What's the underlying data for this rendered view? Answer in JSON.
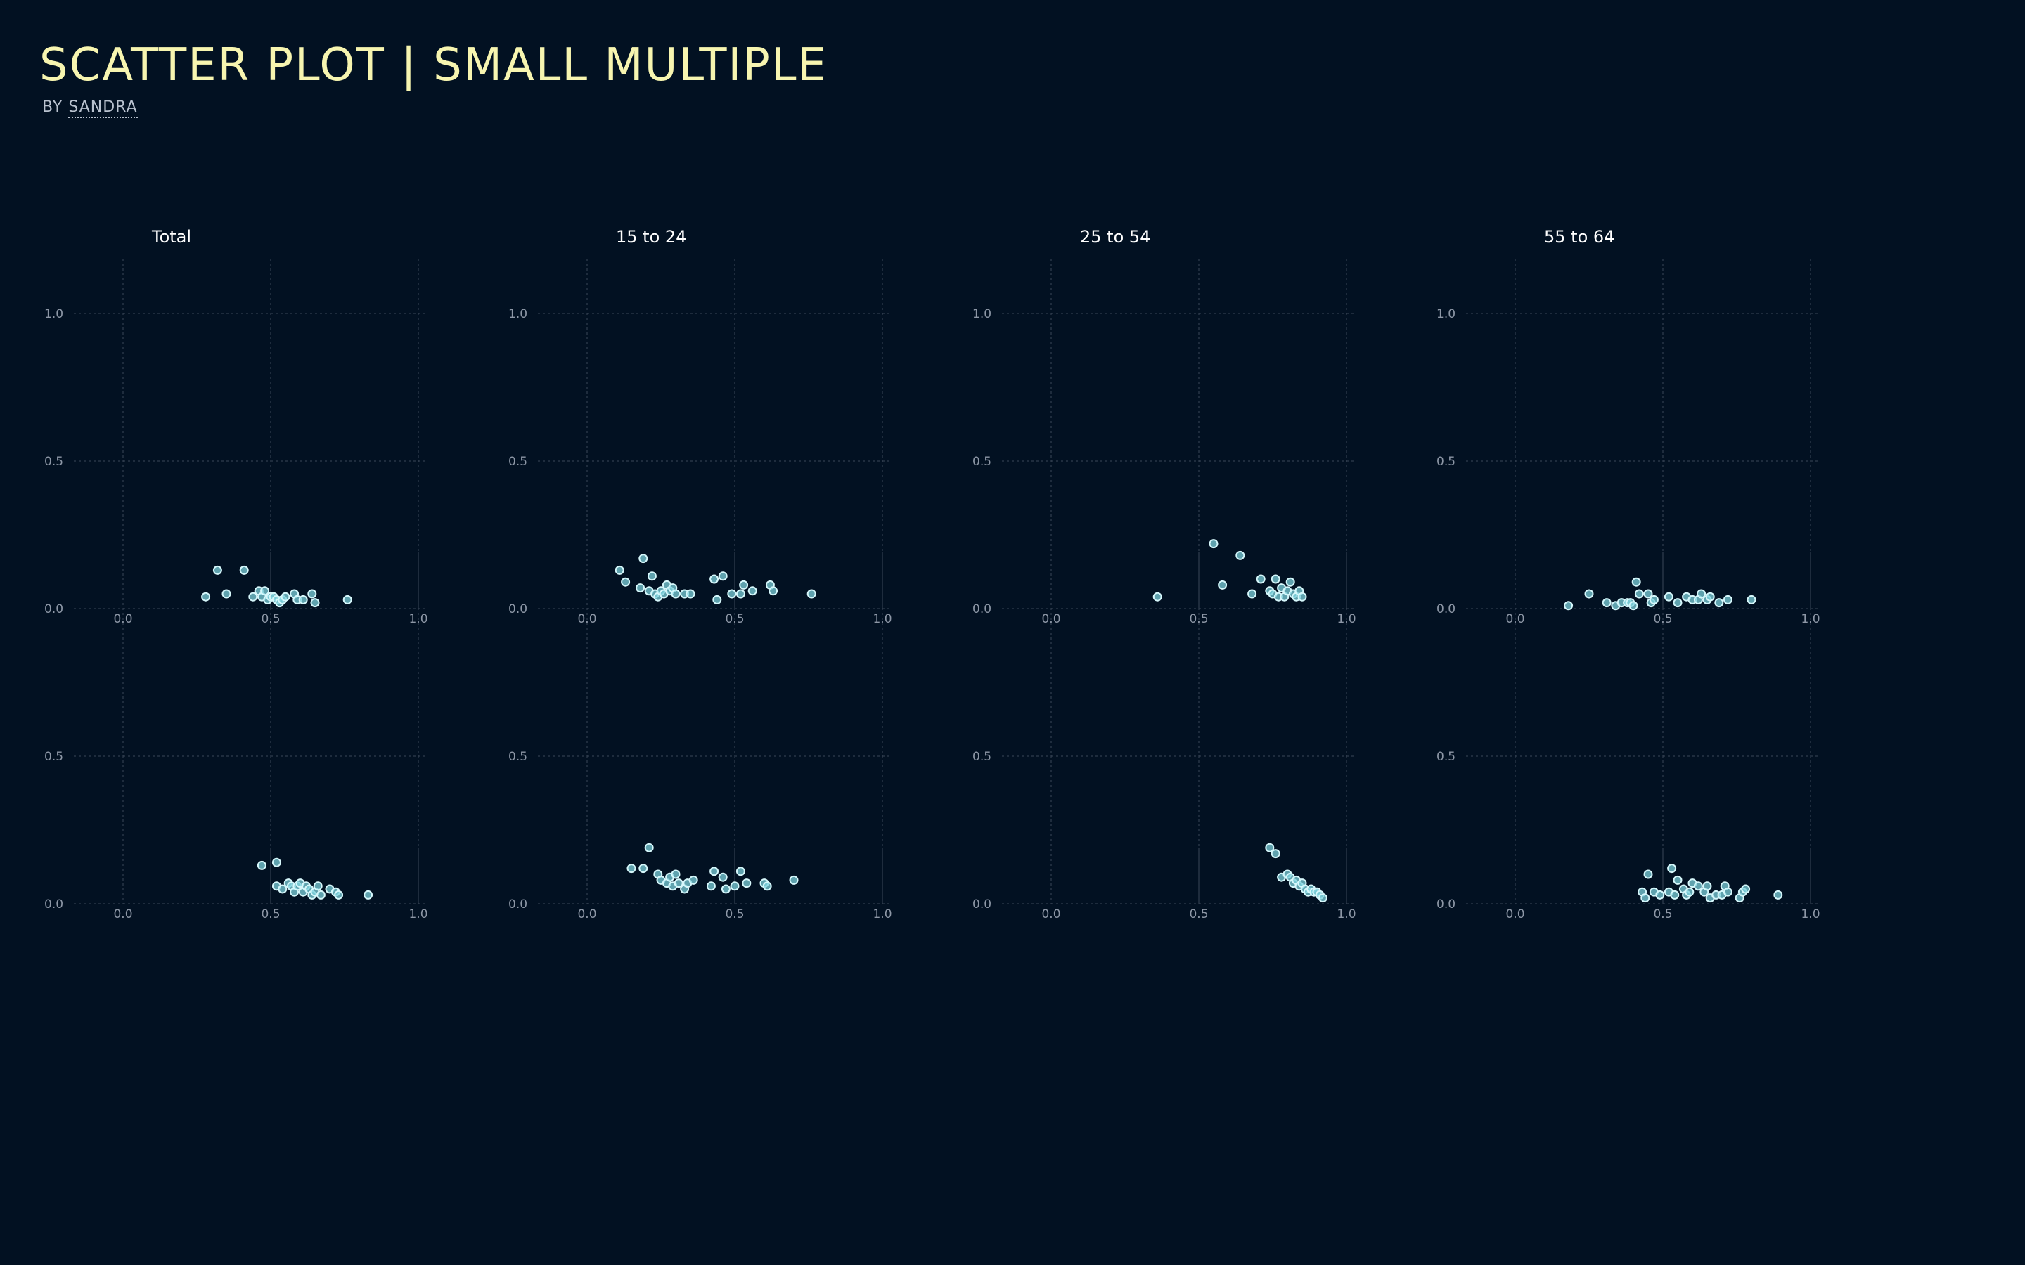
{
  "header": {
    "title": "SCATTER PLOT | SMALL MULTIPLE",
    "byline_prefix": "BY",
    "author": "SANDRA"
  },
  "colors": {
    "background": "#021122",
    "title": "#f7f5b0",
    "point_fill": "#7fd3de",
    "point_stroke": "#d6f7fb",
    "grid": "#3a4658",
    "tick_label": "#8d97a6",
    "panel_title": "#ffffff"
  },
  "chart_data": {
    "type": "scatter",
    "layout": "small-multiples",
    "columns": [
      "Total",
      "15 to 24",
      "25 to 54",
      "55 to 64"
    ],
    "rows": 2,
    "xlim": [
      0,
      1
    ],
    "ylim": [
      0,
      1
    ],
    "xticks": [
      "0.0",
      "0.5",
      "1.0"
    ],
    "yticks_top": [
      "0.0",
      "0.5",
      "1.0"
    ],
    "yticks_bottom": [
      "0.0",
      "0.5"
    ],
    "grid": true,
    "panels": [
      {
        "column": "Total",
        "row": 1,
        "points": [
          [
            0.28,
            0.04
          ],
          [
            0.32,
            0.13
          ],
          [
            0.35,
            0.05
          ],
          [
            0.41,
            0.13
          ],
          [
            0.44,
            0.04
          ],
          [
            0.46,
            0.06
          ],
          [
            0.47,
            0.04
          ],
          [
            0.48,
            0.06
          ],
          [
            0.49,
            0.03
          ],
          [
            0.5,
            0.04
          ],
          [
            0.51,
            0.04
          ],
          [
            0.52,
            0.03
          ],
          [
            0.53,
            0.02
          ],
          [
            0.54,
            0.03
          ],
          [
            0.55,
            0.04
          ],
          [
            0.58,
            0.05
          ],
          [
            0.59,
            0.03
          ],
          [
            0.61,
            0.03
          ],
          [
            0.64,
            0.05
          ],
          [
            0.65,
            0.02
          ],
          [
            0.76,
            0.03
          ]
        ]
      },
      {
        "column": "15 to 24",
        "row": 1,
        "points": [
          [
            0.11,
            0.13
          ],
          [
            0.13,
            0.09
          ],
          [
            0.18,
            0.07
          ],
          [
            0.19,
            0.17
          ],
          [
            0.21,
            0.06
          ],
          [
            0.22,
            0.11
          ],
          [
            0.23,
            0.05
          ],
          [
            0.24,
            0.04
          ],
          [
            0.25,
            0.06
          ],
          [
            0.26,
            0.05
          ],
          [
            0.27,
            0.08
          ],
          [
            0.28,
            0.06
          ],
          [
            0.29,
            0.07
          ],
          [
            0.3,
            0.05
          ],
          [
            0.33,
            0.05
          ],
          [
            0.35,
            0.05
          ],
          [
            0.43,
            0.1
          ],
          [
            0.44,
            0.03
          ],
          [
            0.46,
            0.11
          ],
          [
            0.49,
            0.05
          ],
          [
            0.52,
            0.05
          ],
          [
            0.53,
            0.08
          ],
          [
            0.56,
            0.06
          ],
          [
            0.62,
            0.08
          ],
          [
            0.63,
            0.06
          ],
          [
            0.76,
            0.05
          ]
        ]
      },
      {
        "column": "25 to 54",
        "row": 1,
        "points": [
          [
            0.36,
            0.04
          ],
          [
            0.55,
            0.22
          ],
          [
            0.58,
            0.08
          ],
          [
            0.64,
            0.18
          ],
          [
            0.68,
            0.05
          ],
          [
            0.71,
            0.1
          ],
          [
            0.74,
            0.06
          ],
          [
            0.75,
            0.05
          ],
          [
            0.76,
            0.1
          ],
          [
            0.77,
            0.04
          ],
          [
            0.78,
            0.07
          ],
          [
            0.79,
            0.04
          ],
          [
            0.8,
            0.06
          ],
          [
            0.81,
            0.09
          ],
          [
            0.82,
            0.05
          ],
          [
            0.83,
            0.04
          ],
          [
            0.84,
            0.06
          ],
          [
            0.85,
            0.04
          ]
        ]
      },
      {
        "column": "55 to 64",
        "row": 1,
        "points": [
          [
            0.18,
            0.01
          ],
          [
            0.25,
            0.05
          ],
          [
            0.31,
            0.02
          ],
          [
            0.34,
            0.01
          ],
          [
            0.36,
            0.02
          ],
          [
            0.38,
            0.02
          ],
          [
            0.39,
            0.02
          ],
          [
            0.4,
            0.01
          ],
          [
            0.41,
            0.09
          ],
          [
            0.42,
            0.05
          ],
          [
            0.45,
            0.05
          ],
          [
            0.46,
            0.02
          ],
          [
            0.47,
            0.03
          ],
          [
            0.52,
            0.04
          ],
          [
            0.55,
            0.02
          ],
          [
            0.58,
            0.04
          ],
          [
            0.6,
            0.03
          ],
          [
            0.62,
            0.03
          ],
          [
            0.63,
            0.05
          ],
          [
            0.65,
            0.03
          ],
          [
            0.66,
            0.04
          ],
          [
            0.69,
            0.02
          ],
          [
            0.72,
            0.03
          ],
          [
            0.8,
            0.03
          ]
        ]
      },
      {
        "column": "Total",
        "row": 2,
        "points": [
          [
            0.47,
            0.13
          ],
          [
            0.52,
            0.14
          ],
          [
            0.52,
            0.06
          ],
          [
            0.54,
            0.05
          ],
          [
            0.56,
            0.07
          ],
          [
            0.57,
            0.06
          ],
          [
            0.58,
            0.04
          ],
          [
            0.59,
            0.06
          ],
          [
            0.6,
            0.07
          ],
          [
            0.61,
            0.04
          ],
          [
            0.62,
            0.06
          ],
          [
            0.63,
            0.05
          ],
          [
            0.64,
            0.03
          ],
          [
            0.65,
            0.04
          ],
          [
            0.66,
            0.06
          ],
          [
            0.67,
            0.03
          ],
          [
            0.7,
            0.05
          ],
          [
            0.72,
            0.04
          ],
          [
            0.73,
            0.03
          ],
          [
            0.83,
            0.03
          ]
        ]
      },
      {
        "column": "15 to 24",
        "row": 2,
        "points": [
          [
            0.15,
            0.12
          ],
          [
            0.19,
            0.12
          ],
          [
            0.21,
            0.19
          ],
          [
            0.24,
            0.1
          ],
          [
            0.25,
            0.08
          ],
          [
            0.27,
            0.07
          ],
          [
            0.28,
            0.09
          ],
          [
            0.29,
            0.06
          ],
          [
            0.3,
            0.1
          ],
          [
            0.31,
            0.07
          ],
          [
            0.33,
            0.05
          ],
          [
            0.34,
            0.07
          ],
          [
            0.36,
            0.08
          ],
          [
            0.42,
            0.06
          ],
          [
            0.43,
            0.11
          ],
          [
            0.46,
            0.09
          ],
          [
            0.47,
            0.05
          ],
          [
            0.5,
            0.06
          ],
          [
            0.52,
            0.11
          ],
          [
            0.54,
            0.07
          ],
          [
            0.6,
            0.07
          ],
          [
            0.61,
            0.06
          ],
          [
            0.7,
            0.08
          ]
        ]
      },
      {
        "column": "25 to 54",
        "row": 2,
        "points": [
          [
            0.74,
            0.19
          ],
          [
            0.76,
            0.17
          ],
          [
            0.78,
            0.09
          ],
          [
            0.8,
            0.1
          ],
          [
            0.81,
            0.09
          ],
          [
            0.82,
            0.07
          ],
          [
            0.83,
            0.08
          ],
          [
            0.84,
            0.06
          ],
          [
            0.85,
            0.07
          ],
          [
            0.86,
            0.05
          ],
          [
            0.87,
            0.04
          ],
          [
            0.88,
            0.05
          ],
          [
            0.89,
            0.04
          ],
          [
            0.9,
            0.04
          ],
          [
            0.91,
            0.03
          ],
          [
            0.92,
            0.02
          ]
        ]
      },
      {
        "column": "55 to 64",
        "row": 2,
        "points": [
          [
            0.43,
            0.04
          ],
          [
            0.44,
            0.02
          ],
          [
            0.45,
            0.1
          ],
          [
            0.47,
            0.04
          ],
          [
            0.49,
            0.03
          ],
          [
            0.52,
            0.04
          ],
          [
            0.53,
            0.12
          ],
          [
            0.54,
            0.03
          ],
          [
            0.55,
            0.08
          ],
          [
            0.57,
            0.05
          ],
          [
            0.58,
            0.03
          ],
          [
            0.59,
            0.04
          ],
          [
            0.6,
            0.07
          ],
          [
            0.62,
            0.06
          ],
          [
            0.64,
            0.04
          ],
          [
            0.65,
            0.06
          ],
          [
            0.66,
            0.02
          ],
          [
            0.68,
            0.03
          ],
          [
            0.7,
            0.03
          ],
          [
            0.71,
            0.06
          ],
          [
            0.72,
            0.04
          ],
          [
            0.76,
            0.02
          ],
          [
            0.77,
            0.04
          ],
          [
            0.78,
            0.05
          ],
          [
            0.89,
            0.03
          ]
        ]
      }
    ]
  }
}
